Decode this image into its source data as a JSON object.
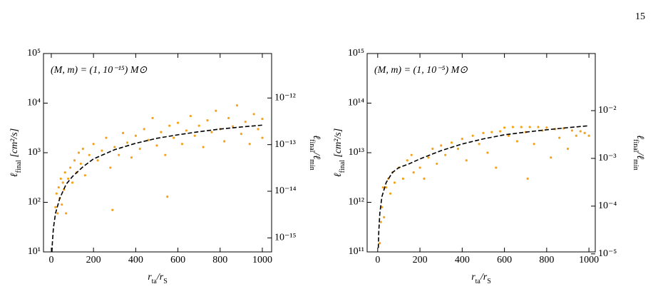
{
  "page_number": "15",
  "chart_data": [
    {
      "type": "scatter",
      "annotation": "(M, m) = (1, 10⁻¹⁵) M⊙",
      "xlabel": [
        "r",
        "ta",
        "/r",
        "S"
      ],
      "ylabel": [
        "ℓ",
        "final",
        " [cm²/s]"
      ],
      "y2label": [
        "ℓ",
        "final",
        "/ℓ",
        "min"
      ],
      "xlim": [
        -37,
        1044
      ],
      "xticks": [
        0,
        200,
        400,
        600,
        800,
        1000
      ],
      "ylim": [
        10,
        100000
      ],
      "yscale": "log",
      "yticks": [
        {
          "value": 10,
          "label": "10¹"
        },
        {
          "value": 100,
          "label": "10²"
        },
        {
          "value": 1000,
          "label": "10³"
        },
        {
          "value": 10000,
          "label": "10⁴"
        },
        {
          "value": 100000,
          "label": "10⁵"
        }
      ],
      "y2lim": [
        9e-12,
        5e-16
      ],
      "y2ticks": [
        {
          "value": 1e-12,
          "label": "10⁻¹²"
        },
        {
          "value": 1e-13,
          "label": "10⁻¹³"
        },
        {
          "value": 1e-14,
          "label": "10⁻¹⁴"
        },
        {
          "value": 1e-15,
          "label": "10⁻¹⁵"
        }
      ],
      "series": [
        {
          "type": "scatter",
          "color": "#f5a21b",
          "x": [
            20,
            25,
            30,
            35,
            40,
            45,
            50,
            55,
            60,
            65,
            70,
            80,
            90,
            100,
            110,
            120,
            130,
            140,
            150,
            160,
            180,
            200,
            220,
            240,
            260,
            280,
            290,
            300,
            320,
            340,
            360,
            380,
            400,
            420,
            440,
            460,
            480,
            500,
            520,
            540,
            550,
            560,
            580,
            600,
            620,
            640,
            660,
            680,
            700,
            720,
            740,
            760,
            780,
            800,
            820,
            840,
            860,
            880,
            900,
            920,
            940,
            960,
            980,
            1000,
            1000
          ],
          "values": [
            80,
            150,
            60,
            200,
            120,
            300,
            90,
            250,
            180,
            400,
            60,
            300,
            500,
            250,
            700,
            400,
            1000,
            600,
            1200,
            350,
            900,
            1500,
            700,
            1100,
            2000,
            500,
            70,
            1300,
            900,
            2500,
            1600,
            800,
            2200,
            1200,
            3000,
            1800,
            5000,
            1400,
            2600,
            900,
            130,
            3500,
            2000,
            4000,
            1500,
            2800,
            5500,
            2200,
            3500,
            1300,
            4500,
            2600,
            7000,
            3000,
            1700,
            5000,
            3400,
            9000,
            2400,
            4200,
            1500,
            6000,
            3000,
            2000,
            4800
          ]
        },
        {
          "type": "line",
          "style": "dashed",
          "color": "#000000",
          "x": [
            3,
            5,
            10,
            20,
            40,
            70,
            100,
            150,
            200,
            300,
            400,
            500,
            600,
            700,
            800,
            900,
            1000
          ],
          "values": [
            10,
            15,
            30,
            60,
            120,
            230,
            330,
            520,
            750,
            1150,
            1550,
            1950,
            2300,
            2650,
            3000,
            3300,
            3600
          ]
        }
      ]
    },
    {
      "type": "scatter",
      "annotation": "(M, m) = (1, 10⁻⁵) M⊙",
      "xlabel": [
        "r",
        "ta",
        "/r",
        "S"
      ],
      "ylabel": [
        "ℓ",
        "final",
        " [cm²/s]"
      ],
      "y2label": [
        "ℓ",
        "final",
        "/ℓ",
        "min"
      ],
      "xlim": [
        -50,
        1030
      ],
      "xticks": [
        0,
        200,
        400,
        600,
        800,
        1000
      ],
      "ylim": [
        100000000000,
        1000000000000000
      ],
      "yscale": "log",
      "yticks": [
        {
          "value": 100000000000,
          "label": "10¹¹"
        },
        {
          "value": 1000000000000,
          "label": "10¹²"
        },
        {
          "value": 10000000000000,
          "label": "10¹³"
        },
        {
          "value": 100000000000000,
          "label": "10¹⁴"
        },
        {
          "value": 1000000000000000,
          "label": "10¹⁵"
        }
      ],
      "y2lim": [
        0.157,
        1.1e-05
      ],
      "y2ticks": [
        {
          "value": 0.01,
          "label": "10⁻²"
        },
        {
          "value": 0.001,
          "label": "10⁻³"
        },
        {
          "value": 0.0001,
          "label": "10⁻⁴"
        },
        {
          "value": 1e-05,
          "label": "10⁻⁵"
        }
      ],
      "series": [
        {
          "type": "scatter",
          "color": "#f5a21b",
          "x": [
            10,
            15,
            20,
            25,
            30,
            40,
            50,
            60,
            70,
            80,
            100,
            120,
            140,
            160,
            170,
            200,
            220,
            240,
            260,
            280,
            300,
            320,
            350,
            380,
            400,
            420,
            450,
            480,
            500,
            520,
            540,
            560,
            580,
            600,
            620,
            640,
            660,
            680,
            700,
            710,
            720,
            740,
            760,
            780,
            800,
            820,
            840,
            860,
            880,
            900,
            920,
            940,
            960,
            980,
            1000
          ],
          "values": [
            150000000000,
            400000000000,
            800000000000,
            2000000000000,
            500000000000,
            2000000000000,
            3000000000000,
            1500000000000,
            4000000000000,
            2500000000000,
            5000000000000,
            3000000000000,
            7000000000000,
            9000000000000,
            4000000000000,
            5000000000000,
            3000000000000,
            8000000000000,
            12000000000000,
            6000000000000,
            14000000000000,
            9000000000000,
            16000000000000,
            12000000000000,
            19000000000000,
            7000000000000,
            22000000000000,
            15000000000000,
            25000000000000,
            10000000000000,
            26000000000000,
            5000000000000,
            27000000000000,
            32000000000000,
            22000000000000,
            33000000000000,
            17000000000000,
            33000000000000,
            26000000000000,
            3000000000000,
            33000000000000,
            15000000000000,
            33000000000000,
            28000000000000,
            32000000000000,
            8000000000000,
            30000000000000,
            20000000000000,
            31000000000000,
            12000000000000,
            28000000000000,
            22000000000000,
            27000000000000,
            25000000000000,
            22000000000000
          ]
        },
        {
          "type": "line",
          "style": "dashed",
          "color": "#000000",
          "x": [
            3,
            5,
            10,
            20,
            40,
            70,
            100,
            150,
            200,
            300,
            400,
            500,
            600,
            700,
            800,
            900,
            1000
          ],
          "values": [
            120000000000,
            250000000000,
            600000000000,
            1300000000000,
            2500000000000,
            4000000000000,
            5000000000000,
            6000000000000,
            7500000000000,
            11000000000000,
            15000000000000,
            19000000000000,
            23000000000000,
            26000000000000,
            29000000000000,
            32000000000000,
            35000000000000
          ]
        }
      ]
    }
  ]
}
